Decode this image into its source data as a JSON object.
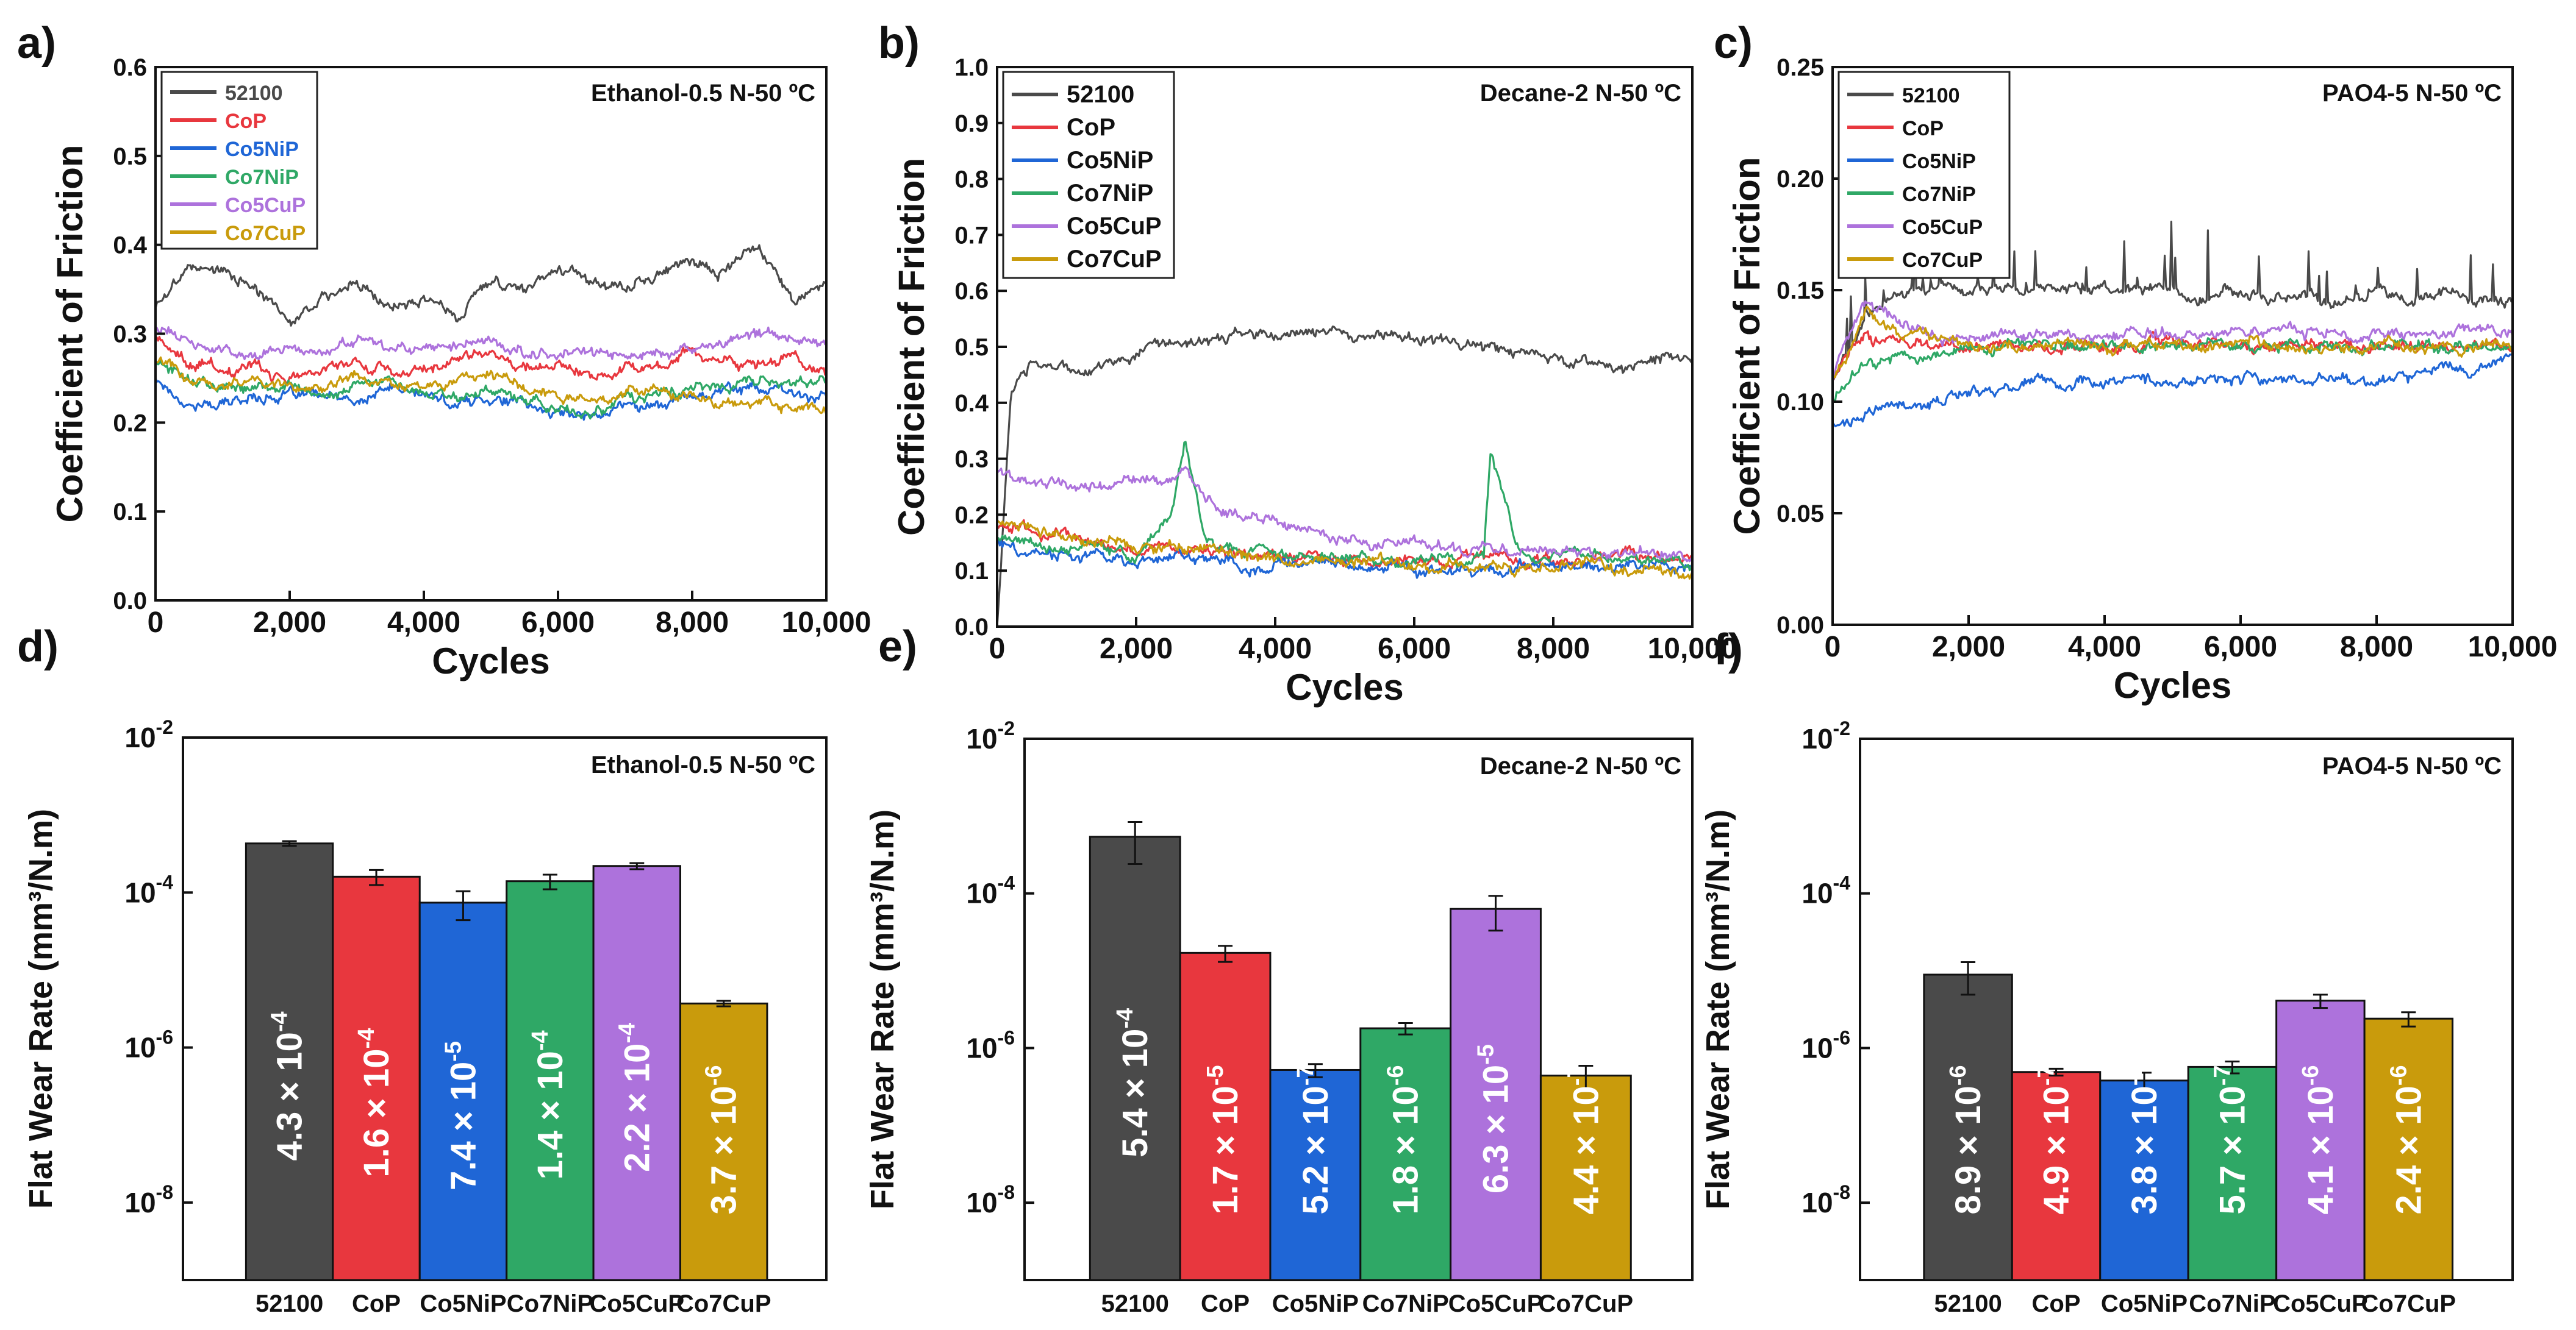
{
  "colors": {
    "52100": "#4a4a4a",
    "CoP": "#e8373e",
    "Co5NiP": "#1f66d6",
    "Co7NiP": "#2fa866",
    "Co5CuP": "#ad72dc",
    "Co7CuP": "#c99b0c"
  },
  "chart_data": [
    {
      "panel_label": "a)",
      "type": "line",
      "title": "Ethanol-0.5 N-50 ºC",
      "xlabel": "Cycles",
      "ylabel": "Coefficient of Friction",
      "xlim": [
        0,
        10000
      ],
      "ylim": [
        0,
        0.6
      ],
      "xticks": [
        0,
        2000,
        4000,
        6000,
        8000,
        10000
      ],
      "xtick_labels": [
        "0",
        "2,000",
        "4,000",
        "6,000",
        "8,000",
        "10,000"
      ],
      "yticks": [
        0,
        0.1,
        0.2,
        0.3,
        0.4,
        0.5,
        0.6
      ],
      "ytick_labels": [
        "0.0",
        "0.1",
        "0.2",
        "0.3",
        "0.4",
        "0.5",
        "0.6"
      ],
      "legend_position": "top-left",
      "x": [
        0,
        500,
        1000,
        1500,
        2000,
        2500,
        3000,
        3500,
        4000,
        4500,
        5000,
        5500,
        6000,
        6500,
        7000,
        7500,
        8000,
        8500,
        9000,
        9500,
        10000
      ],
      "series": [
        {
          "name": "52100",
          "values": [
            0.33,
            0.38,
            0.37,
            0.35,
            0.31,
            0.34,
            0.36,
            0.33,
            0.34,
            0.32,
            0.36,
            0.35,
            0.38,
            0.36,
            0.35,
            0.37,
            0.38,
            0.37,
            0.4,
            0.34,
            0.36
          ]
        },
        {
          "name": "CoP",
          "values": [
            0.3,
            0.27,
            0.26,
            0.26,
            0.25,
            0.26,
            0.27,
            0.26,
            0.26,
            0.27,
            0.28,
            0.26,
            0.27,
            0.25,
            0.26,
            0.26,
            0.28,
            0.27,
            0.27,
            0.27,
            0.26
          ]
        },
        {
          "name": "Co5NiP",
          "values": [
            0.25,
            0.22,
            0.22,
            0.23,
            0.23,
            0.23,
            0.22,
            0.24,
            0.23,
            0.22,
            0.23,
            0.22,
            0.21,
            0.21,
            0.22,
            0.22,
            0.23,
            0.24,
            0.24,
            0.23,
            0.23
          ]
        },
        {
          "name": "Co7NiP",
          "values": [
            0.27,
            0.25,
            0.24,
            0.24,
            0.24,
            0.23,
            0.24,
            0.25,
            0.24,
            0.23,
            0.23,
            0.23,
            0.21,
            0.21,
            0.23,
            0.23,
            0.24,
            0.24,
            0.25,
            0.24,
            0.25
          ]
        },
        {
          "name": "Co5CuP",
          "values": [
            0.31,
            0.29,
            0.28,
            0.28,
            0.28,
            0.28,
            0.29,
            0.28,
            0.28,
            0.29,
            0.29,
            0.28,
            0.28,
            0.28,
            0.27,
            0.28,
            0.28,
            0.29,
            0.3,
            0.3,
            0.29
          ]
        },
        {
          "name": "Co7CuP",
          "values": [
            0.27,
            0.25,
            0.24,
            0.25,
            0.24,
            0.24,
            0.25,
            0.24,
            0.24,
            0.24,
            0.25,
            0.24,
            0.23,
            0.23,
            0.23,
            0.24,
            0.23,
            0.22,
            0.22,
            0.22,
            0.21
          ]
        }
      ]
    },
    {
      "panel_label": "b)",
      "type": "line",
      "title": "Decane-2 N-50 ºC",
      "xlabel": "Cycles",
      "ylabel": "Coefficient of Friction",
      "xlim": [
        0,
        10000
      ],
      "ylim": [
        0,
        1.0
      ],
      "xticks": [
        0,
        2000,
        4000,
        6000,
        8000,
        10000
      ],
      "xtick_labels": [
        "0",
        "2,000",
        "4,000",
        "6,000",
        "8,000",
        "10,000"
      ],
      "yticks": [
        0,
        0.1,
        0.2,
        0.3,
        0.4,
        0.5,
        0.6,
        0.7,
        0.8,
        0.9,
        1.0
      ],
      "ytick_labels": [
        "0.0",
        "0.1",
        "0.2",
        "0.3",
        "0.4",
        "0.5",
        "0.6",
        "0.7",
        "0.8",
        "0.9",
        "1.0"
      ],
      "legend_position": "top-left",
      "x": [
        0,
        200,
        500,
        1000,
        1500,
        2000,
        2500,
        2700,
        3000,
        3500,
        4000,
        4500,
        5000,
        5500,
        6000,
        6500,
        7000,
        7100,
        7500,
        8000,
        8500,
        9000,
        9500,
        10000
      ],
      "series": [
        {
          "name": "52100",
          "values": [
            0.0,
            0.42,
            0.46,
            0.46,
            0.46,
            0.49,
            0.51,
            0.51,
            0.51,
            0.52,
            0.52,
            0.53,
            0.52,
            0.52,
            0.51,
            0.51,
            0.5,
            0.5,
            0.49,
            0.48,
            0.47,
            0.46,
            0.47,
            0.48
          ]
        },
        {
          "name": "CoP",
          "values": [
            0.18,
            0.18,
            0.17,
            0.16,
            0.15,
            0.14,
            0.14,
            0.14,
            0.13,
            0.13,
            0.13,
            0.12,
            0.12,
            0.12,
            0.12,
            0.12,
            0.12,
            0.12,
            0.12,
            0.12,
            0.12,
            0.12,
            0.12,
            0.12
          ]
        },
        {
          "name": "Co5NiP",
          "values": [
            0.15,
            0.14,
            0.13,
            0.13,
            0.12,
            0.12,
            0.12,
            0.12,
            0.12,
            0.11,
            0.11,
            0.11,
            0.11,
            0.11,
            0.1,
            0.1,
            0.11,
            0.11,
            0.11,
            0.11,
            0.11,
            0.11,
            0.11,
            0.11
          ]
        },
        {
          "name": "Co7NiP",
          "values": [
            0.16,
            0.16,
            0.15,
            0.14,
            0.14,
            0.13,
            0.2,
            0.33,
            0.15,
            0.13,
            0.13,
            0.12,
            0.12,
            0.12,
            0.12,
            0.12,
            0.13,
            0.31,
            0.14,
            0.13,
            0.13,
            0.12,
            0.12,
            0.12
          ]
        },
        {
          "name": "Co5CuP",
          "values": [
            0.28,
            0.27,
            0.26,
            0.25,
            0.25,
            0.26,
            0.27,
            0.28,
            0.22,
            0.2,
            0.19,
            0.17,
            0.16,
            0.15,
            0.15,
            0.14,
            0.14,
            0.14,
            0.14,
            0.14,
            0.13,
            0.13,
            0.13,
            0.13
          ]
        },
        {
          "name": "Co7CuP",
          "values": [
            0.19,
            0.18,
            0.17,
            0.16,
            0.15,
            0.14,
            0.14,
            0.14,
            0.13,
            0.13,
            0.12,
            0.12,
            0.12,
            0.12,
            0.11,
            0.11,
            0.11,
            0.11,
            0.11,
            0.11,
            0.11,
            0.1,
            0.1,
            0.1
          ]
        }
      ]
    },
    {
      "panel_label": "c)",
      "type": "line",
      "title": "PAO4-5 N-50 ºC",
      "xlabel": "Cycles",
      "ylabel": "Coefficient of Friction",
      "xlim": [
        0,
        10000
      ],
      "ylim": [
        0,
        0.25
      ],
      "xticks": [
        0,
        2000,
        4000,
        6000,
        8000,
        10000
      ],
      "xtick_labels": [
        "0",
        "2,000",
        "4,000",
        "6,000",
        "8,000",
        "10,000"
      ],
      "yticks": [
        0,
        0.05,
        0.1,
        0.15,
        0.2,
        0.25
      ],
      "ytick_labels": [
        "0.00",
        "0.05",
        "0.10",
        "0.15",
        "0.20",
        "0.25"
      ],
      "legend_position": "top-left",
      "x": [
        0,
        200,
        500,
        1000,
        1500,
        2000,
        2500,
        3000,
        3500,
        4000,
        4500,
        5000,
        5500,
        6000,
        6500,
        7000,
        7500,
        8000,
        8500,
        9000,
        9500,
        10000
      ],
      "series": [
        {
          "name": "52100",
          "values": [
            0.11,
            0.12,
            0.14,
            0.15,
            0.15,
            0.15,
            0.15,
            0.15,
            0.15,
            0.15,
            0.15,
            0.15,
            0.145,
            0.15,
            0.145,
            0.15,
            0.145,
            0.15,
            0.145,
            0.15,
            0.145,
            0.145
          ]
        },
        {
          "name": "CoP",
          "values": [
            0.11,
            0.12,
            0.13,
            0.125,
            0.125,
            0.125,
            0.125,
            0.125,
            0.125,
            0.125,
            0.125,
            0.125,
            0.125,
            0.125,
            0.125,
            0.125,
            0.125,
            0.125,
            0.125,
            0.125,
            0.125,
            0.125
          ]
        },
        {
          "name": "Co5NiP",
          "values": [
            0.09,
            0.09,
            0.095,
            0.1,
            0.1,
            0.105,
            0.105,
            0.11,
            0.11,
            0.11,
            0.11,
            0.11,
            0.11,
            0.11,
            0.11,
            0.11,
            0.11,
            0.11,
            0.11,
            0.115,
            0.115,
            0.12
          ]
        },
        {
          "name": "Co7NiP",
          "values": [
            0.1,
            0.11,
            0.12,
            0.12,
            0.12,
            0.125,
            0.125,
            0.125,
            0.125,
            0.125,
            0.125,
            0.125,
            0.125,
            0.125,
            0.125,
            0.125,
            0.125,
            0.125,
            0.125,
            0.125,
            0.125,
            0.125
          ]
        },
        {
          "name": "Co5CuP",
          "values": [
            0.11,
            0.13,
            0.145,
            0.135,
            0.13,
            0.13,
            0.13,
            0.13,
            0.13,
            0.13,
            0.13,
            0.13,
            0.13,
            0.13,
            0.13,
            0.13,
            0.13,
            0.13,
            0.13,
            0.13,
            0.13,
            0.13
          ]
        },
        {
          "name": "Co7CuP",
          "values": [
            0.11,
            0.12,
            0.14,
            0.13,
            0.13,
            0.125,
            0.125,
            0.125,
            0.125,
            0.125,
            0.125,
            0.125,
            0.125,
            0.125,
            0.125,
            0.125,
            0.125,
            0.125,
            0.125,
            0.125,
            0.125,
            0.125
          ]
        }
      ]
    },
    {
      "panel_label": "d)",
      "type": "bar",
      "title": "Ethanol-0.5 N-50 ºC",
      "xlabel": "",
      "ylabel": "Flat Wear Rate (mm³/N.m)",
      "yscale": "log",
      "ylim_exp": [
        -9,
        -2
      ],
      "ytick_exps": [
        -2,
        -4,
        -6,
        -8
      ],
      "categories": [
        "52100",
        "CoP",
        "Co5NiP",
        "Co7NiP",
        "Co5CuP",
        "Co7CuP"
      ],
      "values": [
        0.00043,
        0.00016,
        7.4e-05,
        0.00014,
        0.00022,
        3.7e-06
      ],
      "errors": [
        3e-05,
        3.5e-05,
        3e-05,
        3e-05,
        2e-05,
        3e-07
      ],
      "mantissas": [
        "4.3",
        "1.6",
        "7.4",
        "1.4",
        "2.2",
        "3.7"
      ],
      "exponents": [
        "-4",
        "-4",
        "-5",
        "-4",
        "-4",
        "-6"
      ]
    },
    {
      "panel_label": "e)",
      "type": "bar",
      "title": "Decane-2 N-50 ºC",
      "xlabel": "",
      "ylabel": "Flat Wear Rate (mm³/N.m)",
      "yscale": "log",
      "ylim_exp": [
        -9,
        -2
      ],
      "ytick_exps": [
        -2,
        -4,
        -6,
        -8
      ],
      "categories": [
        "52100",
        "CoP",
        "Co5NiP",
        "Co7NiP",
        "Co5CuP",
        "Co7CuP"
      ],
      "values": [
        0.00054,
        1.7e-05,
        5.2e-07,
        1.8e-06,
        6.3e-05,
        4.4e-07
      ],
      "errors": [
        0.0003,
        4e-06,
        1e-07,
        3e-07,
        3e-05,
        1.5e-07
      ],
      "mantissas": [
        "5.4",
        "1.7",
        "5.2",
        "1.8",
        "6.3",
        "4.4"
      ],
      "exponents": [
        "-4",
        "-5",
        "-7",
        "-6",
        "-5",
        "-7"
      ]
    },
    {
      "panel_label": "f)",
      "type": "bar",
      "title": "PAO4-5 N-50 ºC",
      "xlabel": "",
      "ylabel": "Flat Wear Rate (mm³/N.m)",
      "yscale": "log",
      "ylim_exp": [
        -9,
        -2
      ],
      "ytick_exps": [
        -2,
        -4,
        -6,
        -8
      ],
      "categories": [
        "52100",
        "CoP",
        "Co5NiP",
        "Co7NiP",
        "Co5CuP",
        "Co7CuP"
      ],
      "values": [
        8.9e-06,
        4.9e-07,
        3.8e-07,
        5.7e-07,
        4.1e-06,
        2.4e-06
      ],
      "errors": [
        4e-06,
        5e-08,
        1e-07,
        1e-07,
        8e-07,
        5e-07
      ],
      "mantissas": [
        "8.9",
        "4.9",
        "3.8",
        "5.7",
        "4.1",
        "2.4"
      ],
      "exponents": [
        "-6",
        "-7",
        "-7",
        "-7",
        "-6",
        "-6"
      ]
    }
  ]
}
